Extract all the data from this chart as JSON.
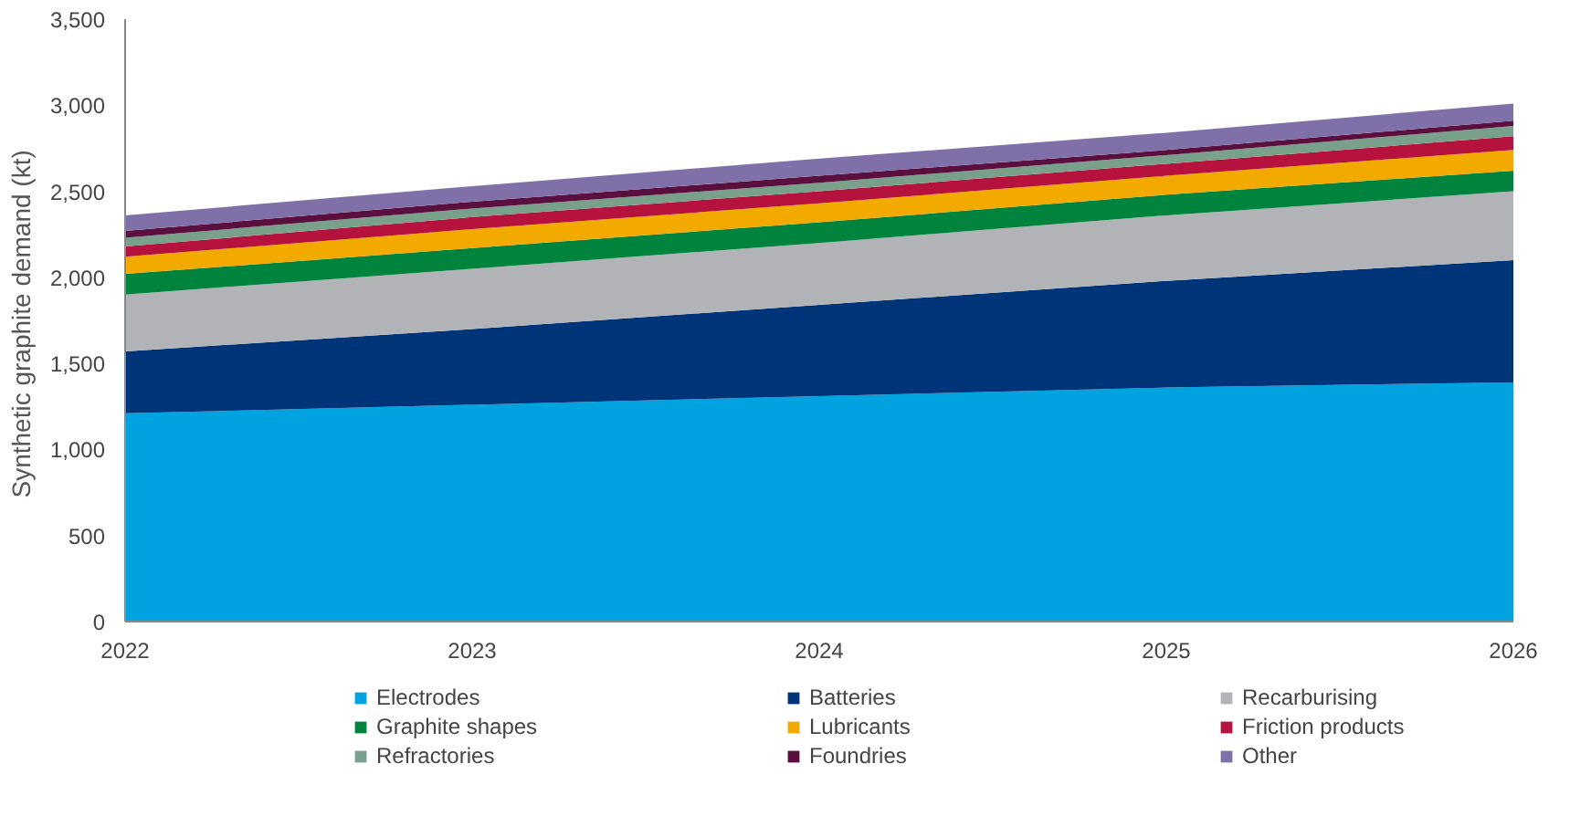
{
  "chart_data": {
    "type": "area",
    "stacked": true,
    "ylabel": "Synthetic graphite demand  (kt)",
    "x": [
      2022,
      2023,
      2024,
      2025,
      2026
    ],
    "xlim": [
      2022,
      2026
    ],
    "xticks": [
      2022,
      2023,
      2024,
      2025,
      2026
    ],
    "ylim": [
      0,
      3500
    ],
    "yticks": [
      {
        "value": 0,
        "label": "0"
      },
      {
        "value": 500,
        "label": "500"
      },
      {
        "value": 1000,
        "label": "1,000"
      },
      {
        "value": 1500,
        "label": "1,500"
      },
      {
        "value": 2000,
        "label": "2,000"
      },
      {
        "value": 2500,
        "label": "2,500"
      },
      {
        "value": 3000,
        "label": "3,000"
      },
      {
        "value": 3500,
        "label": "3,500"
      }
    ],
    "grid": false,
    "legend": "bottom",
    "series": [
      {
        "name": "Electrodes",
        "color": "#00a3e0",
        "values": [
          1210,
          1260,
          1310,
          1360,
          1390
        ]
      },
      {
        "name": "Batteries",
        "color": "#003478",
        "values": [
          360,
          440,
          530,
          620,
          710
        ]
      },
      {
        "name": "Recarburising",
        "color": "#b1b3b6",
        "values": [
          330,
          350,
          360,
          380,
          400
        ]
      },
      {
        "name": "Graphite shapes",
        "color": "#00843d",
        "values": [
          120,
          120,
          120,
          120,
          120
        ]
      },
      {
        "name": "Lubricants",
        "color": "#f2a900",
        "values": [
          100,
          110,
          110,
          110,
          120
        ]
      },
      {
        "name": "Friction products",
        "color": "#b5123e",
        "values": [
          60,
          70,
          70,
          70,
          80
        ]
      },
      {
        "name": "Refractories",
        "color": "#78a08a",
        "values": [
          50,
          50,
          50,
          50,
          60
        ]
      },
      {
        "name": "Foundries",
        "color": "#5b0f3f",
        "values": [
          40,
          40,
          40,
          30,
          30
        ]
      },
      {
        "name": "Other",
        "color": "#8070a8",
        "values": [
          90,
          90,
          100,
          100,
          100
        ]
      }
    ]
  }
}
